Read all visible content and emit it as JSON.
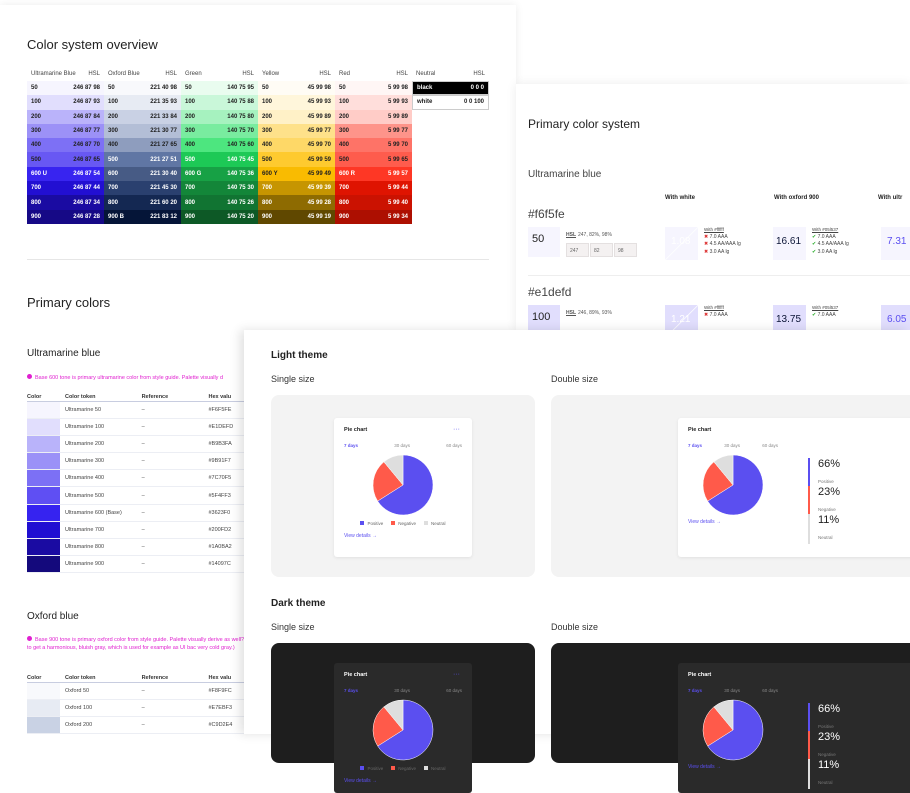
{
  "overview": {
    "title": "Color system overview",
    "palettes": [
      {
        "name": "Ultramarine Blue",
        "hsl_label": "HSL",
        "hue": 246,
        "rows": [
          [
            "50",
            "246 87 98"
          ],
          [
            "100",
            "246 87 93"
          ],
          [
            "200",
            "246 87 84"
          ],
          [
            "300",
            "246 87 77"
          ],
          [
            "400",
            "246 87 70"
          ],
          [
            "500",
            "246 87 65"
          ],
          [
            "600 U",
            "246 87 54"
          ],
          [
            "700",
            "246 87 44"
          ],
          [
            "800",
            "246 87 34"
          ],
          [
            "900",
            "246 87 28"
          ]
        ]
      },
      {
        "name": "Oxford Blue",
        "hsl_label": "HSL",
        "rows": [
          [
            "50",
            "221 40 98"
          ],
          [
            "100",
            "221 35 93"
          ],
          [
            "200",
            "221 33 84"
          ],
          [
            "300",
            "221 30 77"
          ],
          [
            "400",
            "221 27 65"
          ],
          [
            "500",
            "221 27 51"
          ],
          [
            "600",
            "221 30 40"
          ],
          [
            "700",
            "221 45 30"
          ],
          [
            "800",
            "221 60 20"
          ],
          [
            "900 B",
            "221 83 12"
          ]
        ]
      },
      {
        "name": "Green",
        "hsl_label": "HSL",
        "rows": [
          [
            "50",
            "140 75 95"
          ],
          [
            "100",
            "140 75 88"
          ],
          [
            "200",
            "140 75 80"
          ],
          [
            "300",
            "140 75 70"
          ],
          [
            "400",
            "140 75 60"
          ],
          [
            "500",
            "140 75 45"
          ],
          [
            "600 G",
            "140 75 36"
          ],
          [
            "700",
            "140 75 30"
          ],
          [
            "800",
            "140 75 26"
          ],
          [
            "900",
            "140 75 20"
          ]
        ]
      },
      {
        "name": "Yellow",
        "hsl_label": "HSL",
        "rows": [
          [
            "50",
            "45 99 98"
          ],
          [
            "100",
            "45 99 93"
          ],
          [
            "200",
            "45 99 89"
          ],
          [
            "300",
            "45 99 77"
          ],
          [
            "400",
            "45 99 70"
          ],
          [
            "500",
            "45 99 59"
          ],
          [
            "600 Y",
            "45 99 49"
          ],
          [
            "700",
            "45 99 39"
          ],
          [
            "800",
            "45 99 28"
          ],
          [
            "900",
            "45 99 19"
          ]
        ]
      },
      {
        "name": "Red",
        "hsl_label": "HSL",
        "rows": [
          [
            "50",
            "5 99 98"
          ],
          [
            "100",
            "5 99 93"
          ],
          [
            "200",
            "5 99 89"
          ],
          [
            "300",
            "5 99 77"
          ],
          [
            "400",
            "5 99 70"
          ],
          [
            "500",
            "5 99 65"
          ],
          [
            "600 R",
            "5 99 57"
          ],
          [
            "700",
            "5 99 44"
          ],
          [
            "800",
            "5 99 40"
          ],
          [
            "900",
            "5 99 34"
          ]
        ]
      },
      {
        "name": "Neutral",
        "hsl_label": "HSL",
        "rows": [
          [
            "black",
            "0 0 0"
          ],
          [
            "white",
            "0 0 100"
          ]
        ]
      }
    ]
  },
  "primary_colors": {
    "title": "Primary colors",
    "ultramarine": {
      "title": "Ultramarine blue",
      "note": "Base 600 tone is primary ultramarine color from style guide. Palette visually d",
      "headers": [
        "Color",
        "Color token",
        "Reference",
        "Hex valu"
      ],
      "rows": [
        [
          "#F6F5FE",
          "Ultramarine 50",
          "–",
          "#F6F5FE"
        ],
        [
          "#E1DEFD",
          "Ultramarine 100",
          "–",
          "#E1DEFD"
        ],
        [
          "#B9B3FA",
          "Ultramarine 200",
          "–",
          "#B9B3FA"
        ],
        [
          "#9B91F7",
          "Ultramarine 300",
          "–",
          "#9B91F7"
        ],
        [
          "#7C70F5",
          "Ultramarine 400",
          "–",
          "#7C70F5"
        ],
        [
          "#5F4FF3",
          "Ultramarine 500",
          "–",
          "#5F4FF3"
        ],
        [
          "#3623F0",
          "Ultramarine 600 (Base)",
          "–",
          "#3623F0"
        ],
        [
          "#200FD2",
          "Ultramarine 700",
          "–",
          "#200FD2"
        ],
        [
          "#1A0BA2",
          "Ultramarine 800",
          "–",
          "#1A0BA2"
        ],
        [
          "#14097C",
          "Ultramarine 900",
          "–",
          "#14097C"
        ]
      ]
    },
    "oxford": {
      "title": "Oxford blue",
      "note": "Base 900 tone is primary oxford color from style guide. Palette visually derive as well? to get a harmonious, bluish gray, which is used for example as UI bac very cold gray.)",
      "headers": [
        "Color",
        "Color token",
        "Reference",
        "Hex valu"
      ],
      "rows": [
        [
          "#F8F9FC",
          "Oxford 50",
          "–",
          "#F8F9FC"
        ],
        [
          "#E7EBF3",
          "Oxford 100",
          "–",
          "#E7EBF3"
        ],
        [
          "#C9D2E4",
          "Oxford 200",
          "–",
          "#C9D2E4"
        ]
      ]
    }
  },
  "primary_system": {
    "title": "Primary color system",
    "subtitle": "Ultramarine blue",
    "col_headers": [
      "With white",
      "With oxford 900",
      "With ultr"
    ],
    "rows": [
      {
        "hex": "#f6f5fe",
        "tone": "50",
        "color": "#F6F5FE",
        "hsl": "247, 82%, 98%",
        "hsl_label": "HSL",
        "hsl_parts": [
          "247",
          "82",
          "98"
        ],
        "white_ratio": "1.08",
        "white_label": "With #ffffff",
        "white_checks": [
          "7.0 AAA",
          "4.5 AA/AAA lg",
          "3.0 AA lg"
        ],
        "oxford_ratio": "16.61",
        "oxford_label": "With #05l537",
        "oxford_checks": [
          "7.0 AAA",
          "4.5 AA/AAA lg",
          "3.0 AA lg"
        ],
        "ultra_ratio": "7.31"
      },
      {
        "hex": "#e1defd",
        "tone": "100",
        "color": "#E1DEFD",
        "hsl": "246, 89%, 93%",
        "hsl_label": "HSL",
        "white_ratio": "1.21",
        "white_label": "With #ffffff",
        "white_checks": [
          "7.0 AAA"
        ],
        "oxford_ratio": "13.75",
        "oxford_label": "With #05l537",
        "oxford_checks": [
          "7.0 AAA"
        ],
        "ultra_ratio": "6.05"
      }
    ]
  },
  "themes": {
    "light": {
      "title": "Light theme",
      "single": "Single size",
      "double": "Double size"
    },
    "dark": {
      "title": "Dark theme",
      "single": "Single size",
      "double": "Double size"
    },
    "card": {
      "title": "Pie chart",
      "menu": "···",
      "tabs": [
        "7 days",
        "30 days",
        "60 days"
      ],
      "view_details": "View details →"
    }
  },
  "colors": {
    "positive": "#5b4ff0",
    "negative": "#ff5a4a",
    "neutral": "#dedede",
    "dark_bg": "#1e1e1e",
    "dark_card": "#2a2a2a"
  },
  "chart_data": {
    "type": "pie",
    "categories": [
      "Positive",
      "Negative",
      "Neutral"
    ],
    "values": [
      66,
      23,
      11
    ],
    "labels": [
      "66%",
      "23%",
      "11%"
    ]
  }
}
